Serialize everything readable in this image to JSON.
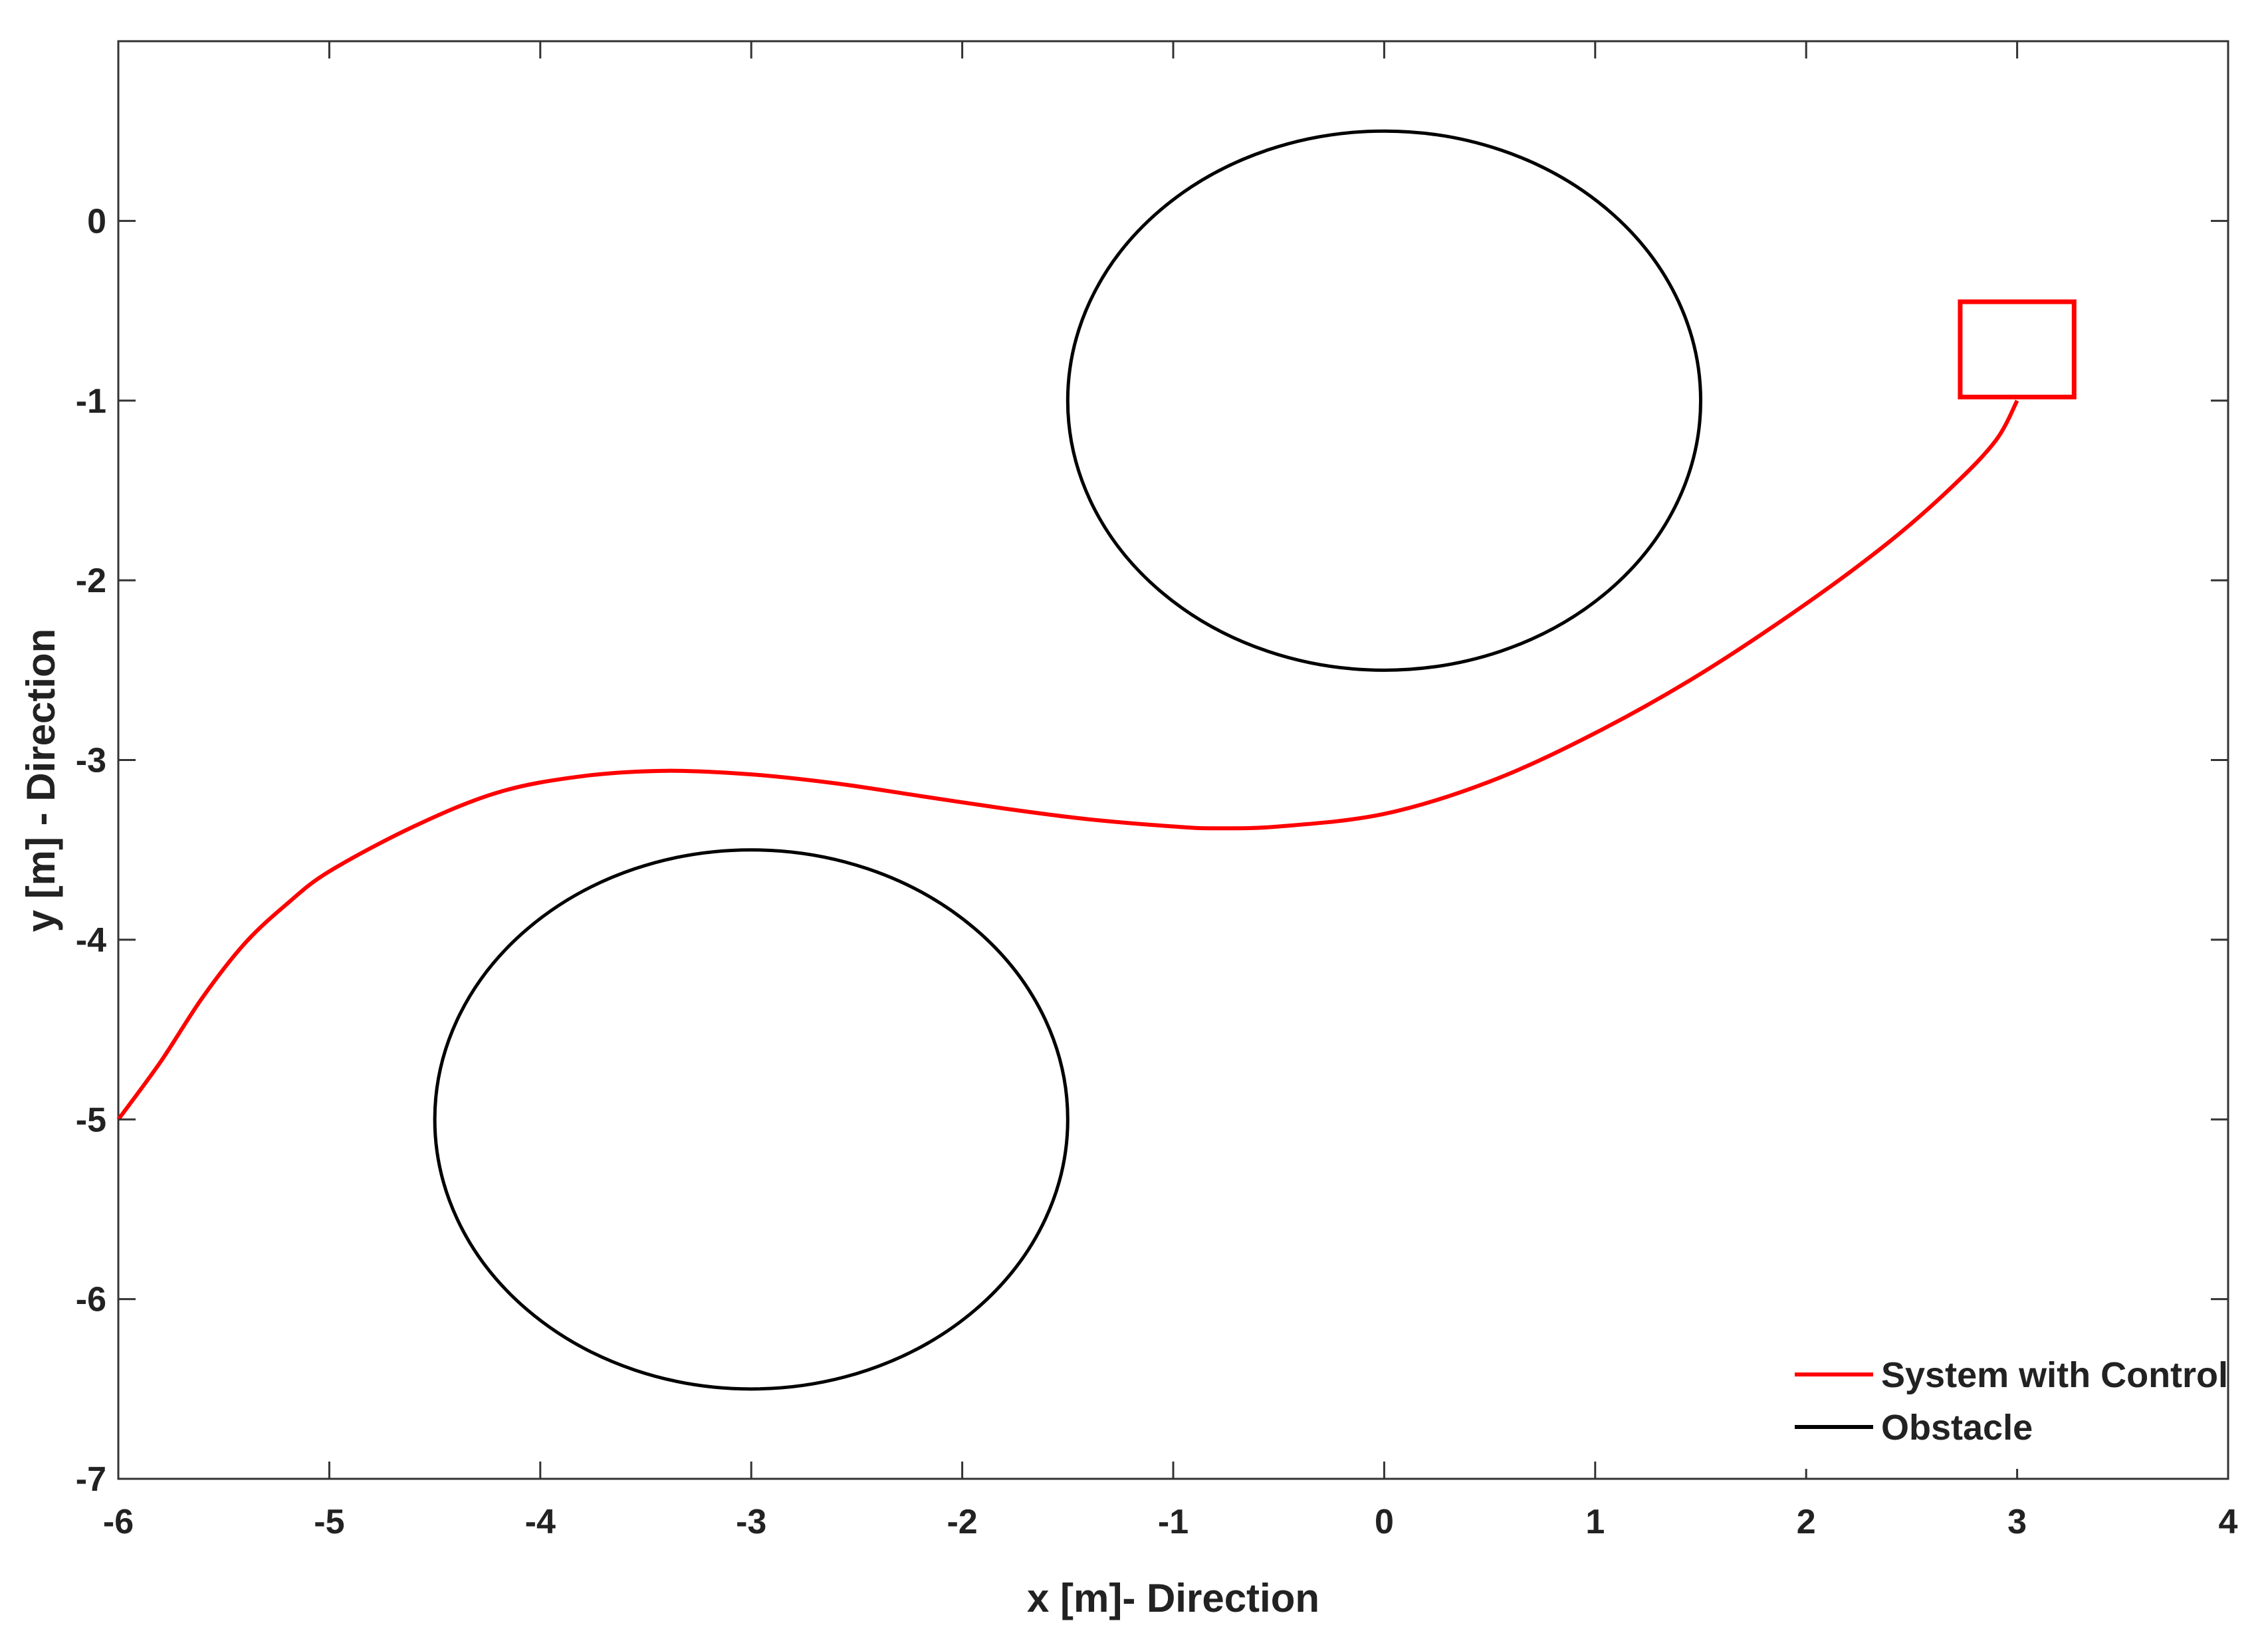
{
  "chart_data": {
    "type": "line",
    "title": "",
    "xlabel": "x [m]- Direction",
    "ylabel": "y [m] - Direction",
    "xlim": [
      -6,
      4
    ],
    "ylim": [
      -7,
      1
    ],
    "x_ticks": [
      -6,
      -5,
      -4,
      -3,
      -2,
      -1,
      0,
      1,
      2,
      3,
      4
    ],
    "y_ticks": [
      0,
      -1,
      -2,
      -3,
      -4,
      -5,
      -6,
      -7
    ],
    "x_tick_labels": [
      "-6",
      "-5",
      "-4",
      "-3",
      "-2",
      "-1",
      "0",
      "1",
      "2",
      "3",
      "4"
    ],
    "y_tick_labels": [
      "0",
      "-1",
      "-2",
      "-3",
      "-4",
      "-5",
      "-6",
      "-7"
    ],
    "grid": false,
    "legend_position": "bottom-right",
    "series": [
      {
        "name": "System with Control",
        "color": "#ff0000",
        "x": [
          -6.0,
          -5.8,
          -5.6,
          -5.4,
          -5.2,
          -5.0,
          -4.6,
          -4.2,
          -3.8,
          -3.4,
          -3.0,
          -2.6,
          -2.2,
          -1.8,
          -1.4,
          -1.0,
          -0.8,
          -0.5,
          0.0,
          0.5,
          1.0,
          1.5,
          2.0,
          2.4,
          2.7,
          2.9,
          3.0
        ],
        "y": [
          -5.0,
          -4.68,
          -4.32,
          -4.02,
          -3.8,
          -3.62,
          -3.37,
          -3.18,
          -3.09,
          -3.06,
          -3.08,
          -3.13,
          -3.2,
          -3.27,
          -3.33,
          -3.37,
          -3.38,
          -3.37,
          -3.3,
          -3.12,
          -2.85,
          -2.52,
          -2.13,
          -1.78,
          -1.47,
          -1.22,
          -1.0
        ]
      },
      {
        "name": "Obstacle",
        "color": "#000000",
        "circles": [
          {
            "cx": 0,
            "cy": -1,
            "r": 1.5
          },
          {
            "cx": -3,
            "cy": -5,
            "r": 1.5
          }
        ]
      }
    ],
    "target_marker": {
      "x": [
        2.73,
        3.27
      ],
      "y": [
        -0.98,
        -0.45
      ],
      "color": "#ff0000"
    }
  }
}
